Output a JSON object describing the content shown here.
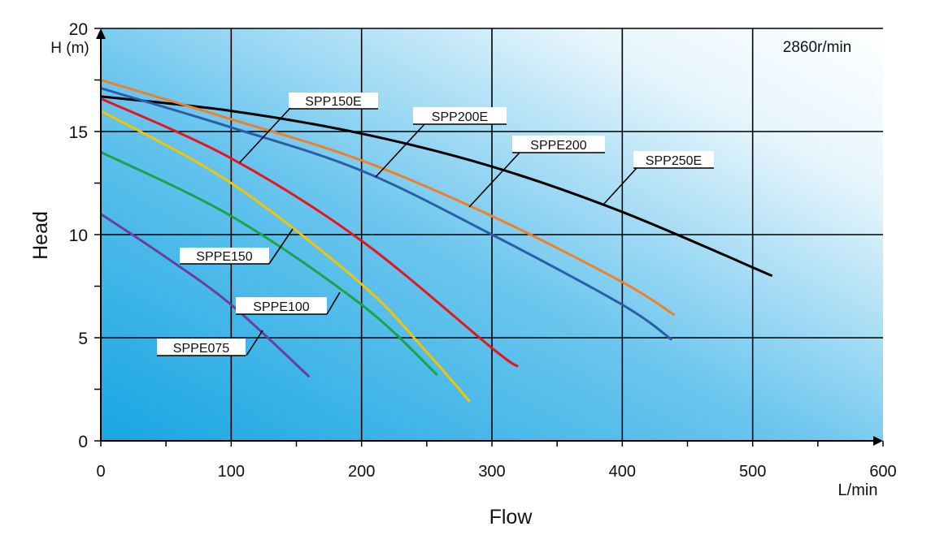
{
  "chart_data": {
    "type": "line",
    "annotation": "2860r/min",
    "xlabel": "Flow",
    "xunit": "L/min",
    "ylabel": "Head",
    "yunit": "H (m)",
    "xlim": [
      0,
      600
    ],
    "ylim": [
      0,
      20
    ],
    "xticks": [
      "0",
      "100",
      "200",
      "300",
      "400",
      "500",
      "600"
    ],
    "yticks": [
      "0",
      "5",
      "10",
      "15",
      "20"
    ],
    "grid": true,
    "background": "gradient blue (bottom-left) to white (top-right)",
    "series": [
      {
        "name": "SPP250E",
        "color": "#000000",
        "x": [
          0,
          100,
          200,
          300,
          400,
          515
        ],
        "y": [
          16.7,
          16.0,
          14.9,
          13.3,
          11.1,
          8.0
        ]
      },
      {
        "name": "SPPE200",
        "color": "#f07f2a",
        "x": [
          0,
          100,
          200,
          300,
          400,
          440
        ],
        "y": [
          17.5,
          15.6,
          13.6,
          10.9,
          7.7,
          6.1
        ]
      },
      {
        "name": "SPP200E",
        "color": "#2b5ea8",
        "x": [
          0,
          100,
          200,
          300,
          400,
          438
        ],
        "y": [
          17.1,
          15.2,
          13.1,
          10.0,
          6.6,
          4.9
        ]
      },
      {
        "name": "SPP150E",
        "color": "#e8141c",
        "x": [
          0,
          100,
          200,
          300,
          320
        ],
        "y": [
          16.6,
          13.7,
          9.7,
          4.5,
          3.6
        ]
      },
      {
        "name": "SPPE150",
        "color": "#f5c400",
        "x": [
          0,
          100,
          200,
          250,
          283
        ],
        "y": [
          16.0,
          12.5,
          7.6,
          4.3,
          1.9
        ]
      },
      {
        "name": "SPPE100",
        "color": "#1aa34a",
        "x": [
          0,
          100,
          200,
          258
        ],
        "y": [
          14.0,
          10.9,
          6.6,
          3.2
        ]
      },
      {
        "name": "SPPE075",
        "color": "#6a3ea0",
        "x": [
          0,
          50,
          100,
          160
        ],
        "y": [
          11.0,
          8.9,
          6.6,
          3.1
        ]
      }
    ]
  }
}
